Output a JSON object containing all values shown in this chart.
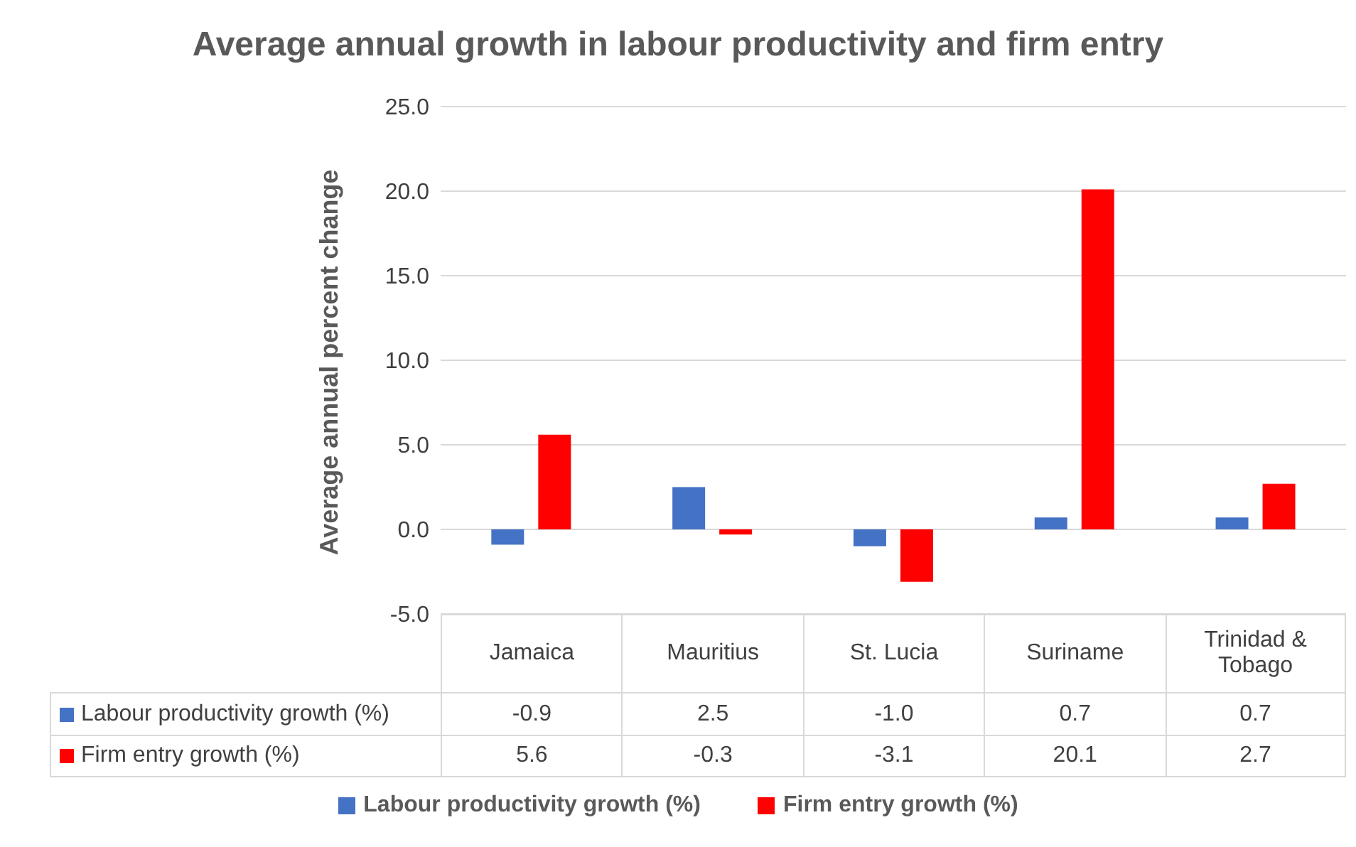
{
  "chart_data": {
    "type": "bar",
    "title": "Average annual growth in labour productivity and firm entry",
    "ylabel": "Average annual percent change",
    "categories": [
      "Jamaica",
      "Mauritius",
      "St. Lucia",
      "Suriname",
      "Trinidad & Tobago"
    ],
    "series": [
      {
        "name": "Labour productivity growth (%)",
        "color": "#4472c4",
        "values": [
          -0.9,
          2.5,
          -1.0,
          0.7,
          0.7
        ],
        "value_labels": [
          "-0.9",
          "2.5",
          "-1.0",
          "0.7",
          "0.7"
        ]
      },
      {
        "name": "Firm entry growth (%)",
        "color": "#ff0000",
        "values": [
          5.6,
          -0.3,
          -3.1,
          20.1,
          2.7
        ],
        "value_labels": [
          "5.6",
          "-0.3",
          "-3.1",
          "20.1",
          "2.7"
        ]
      }
    ],
    "ylim": [
      -5,
      25
    ],
    "yticks": [
      {
        "value": -5,
        "label": "-5.0"
      },
      {
        "value": 0,
        "label": "0.0"
      },
      {
        "value": 5,
        "label": "5.0"
      },
      {
        "value": 10,
        "label": "10.0"
      },
      {
        "value": 15,
        "label": "15.0"
      },
      {
        "value": 20,
        "label": "20.0"
      },
      {
        "value": 25,
        "label": "25.0"
      }
    ],
    "grid": "y",
    "legend": "bottom"
  }
}
